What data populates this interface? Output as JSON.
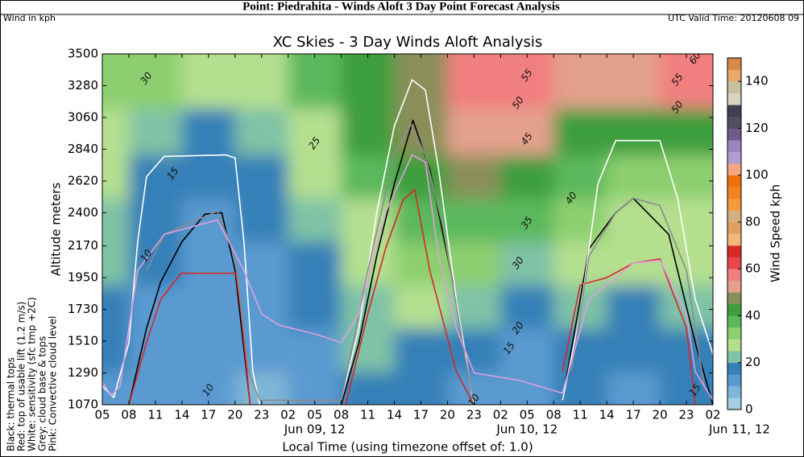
{
  "header": {
    "title": "Point: Piedrahita - Winds Aloft 3 Day Point Forecast Analysis",
    "units_note": "Wind in kph",
    "valid_time": "UTC Valid Time: 20120608 09"
  },
  "chart_data": {
    "type": "contour",
    "title": "XC Skies - 3 Day Winds Aloft Analysis",
    "x_label": "Local Time (using timezone offset of: 1.0)",
    "y_label": "Altitude meters",
    "xlim": [
      0,
      69
    ],
    "ylim": [
      1070,
      3500
    ],
    "xticks": [
      {
        "value": 0,
        "label": "05"
      },
      {
        "value": 3,
        "label": "08"
      },
      {
        "value": 6,
        "label": "11"
      },
      {
        "value": 9,
        "label": "14"
      },
      {
        "value": 12,
        "label": "17"
      },
      {
        "value": 15,
        "label": "20"
      },
      {
        "value": 18,
        "label": "23"
      },
      {
        "value": 21,
        "label": "02"
      },
      {
        "value": 24,
        "label": "05"
      },
      {
        "value": 27,
        "label": "08"
      },
      {
        "value": 30,
        "label": "11"
      },
      {
        "value": 33,
        "label": "14"
      },
      {
        "value": 36,
        "label": "17"
      },
      {
        "value": 39,
        "label": "20"
      },
      {
        "value": 42,
        "label": "23"
      },
      {
        "value": 45,
        "label": "02"
      },
      {
        "value": 48,
        "label": "05"
      },
      {
        "value": 51,
        "label": "08"
      },
      {
        "value": 54,
        "label": "11"
      },
      {
        "value": 57,
        "label": "14"
      },
      {
        "value": 60,
        "label": "17"
      },
      {
        "value": 63,
        "label": "20"
      },
      {
        "value": 66,
        "label": "23"
      },
      {
        "value": 69,
        "label": "02"
      }
    ],
    "date_labels": [
      {
        "value": 24,
        "label": "Jun 09, 12"
      },
      {
        "value": 48,
        "label": "Jun 10, 12"
      },
      {
        "value": 72,
        "label": "Jun 11, 12"
      }
    ],
    "yticks": [
      1070,
      1290,
      1510,
      1730,
      1950,
      2170,
      2400,
      2620,
      2840,
      3060,
      3280,
      3500
    ],
    "speed_grid": {
      "x": [
        0,
        6,
        12,
        18,
        24,
        30,
        36,
        42,
        48,
        54,
        60,
        66
      ],
      "y": [
        1150,
        1450,
        1750,
        2050,
        2350,
        2650,
        2950,
        3300
      ],
      "z": [
        [
          12,
          10,
          10,
          8,
          12,
          18,
          15,
          10,
          12,
          15,
          12,
          15
        ],
        [
          15,
          12,
          10,
          10,
          12,
          20,
          18,
          15,
          12,
          18,
          15,
          18
        ],
        [
          18,
          12,
          12,
          12,
          15,
          22,
          25,
          20,
          15,
          20,
          18,
          20
        ],
        [
          20,
          15,
          12,
          12,
          18,
          25,
          30,
          30,
          22,
          25,
          25,
          25
        ],
        [
          22,
          15,
          12,
          15,
          20,
          28,
          35,
          38,
          35,
          30,
          28,
          28
        ],
        [
          25,
          18,
          15,
          18,
          25,
          35,
          40,
          45,
          42,
          35,
          32,
          30
        ],
        [
          28,
          22,
          18,
          20,
          28,
          40,
          45,
          50,
          50,
          42,
          40,
          40
        ],
        [
          32,
          30,
          25,
          28,
          35,
          42,
          45,
          55,
          58,
          50,
          52,
          58
        ]
      ]
    },
    "contour_labels": [
      {
        "value": 30,
        "x": 5,
        "y": 3330
      },
      {
        "value": 15,
        "x": 8,
        "y": 2670
      },
      {
        "value": 10,
        "x": 5,
        "y": 2100
      },
      {
        "value": 10,
        "x": 12,
        "y": 1170
      },
      {
        "value": 25,
        "x": 24,
        "y": 2880
      },
      {
        "value": 55,
        "x": 48,
        "y": 3350
      },
      {
        "value": 50,
        "x": 47,
        "y": 3160
      },
      {
        "value": 45,
        "x": 48,
        "y": 2910
      },
      {
        "value": 40,
        "x": 53,
        "y": 2500
      },
      {
        "value": 35,
        "x": 48,
        "y": 2330
      },
      {
        "value": 30,
        "x": 47,
        "y": 2050
      },
      {
        "value": 20,
        "x": 47,
        "y": 1600
      },
      {
        "value": 15,
        "x": 46,
        "y": 1460
      },
      {
        "value": 10,
        "x": 42,
        "y": 1100
      },
      {
        "value": 15,
        "x": 67,
        "y": 1170
      },
      {
        "value": 60,
        "x": 67,
        "y": 3470
      },
      {
        "value": 55,
        "x": 65,
        "y": 3320
      },
      {
        "value": 50,
        "x": 65,
        "y": 3130
      }
    ],
    "colorbar": {
      "label": "Wind Speed kph",
      "lim": [
        0,
        150
      ],
      "ticks": [
        0,
        20,
        40,
        60,
        80,
        100,
        120,
        140
      ],
      "levels": [
        0,
        5,
        10,
        15,
        20,
        25,
        30,
        35,
        40,
        45,
        50,
        55,
        60,
        65,
        70,
        75,
        80,
        85,
        90,
        95,
        100,
        105,
        110,
        115,
        120,
        125,
        130,
        135,
        140,
        145,
        150
      ],
      "colors": [
        "#a6cee3",
        "#7fb5d6",
        "#5a9ad0",
        "#3680b8",
        "#7fc2a6",
        "#b4df8f",
        "#8dcf6f",
        "#5cb85c",
        "#3e9e3e",
        "#8a8f5a",
        "#e3a08c",
        "#f27f7f",
        "#e8474a",
        "#d62a2a",
        "#f1b67a",
        "#e0a060",
        "#d4b080",
        "#f59a3a",
        "#f58220",
        "#f07010",
        "#f4a582",
        "#b39ccf",
        "#9b84c0",
        "#705a8a",
        "#505060",
        "#404055",
        "#d8d4c0",
        "#c7c1a0",
        "#e9a86a",
        "#d98a4a"
      ]
    },
    "series": [
      {
        "name": "Black: thermal tops",
        "color": "#000000",
        "x": [
          3,
          5,
          6.6,
          9,
          11.6,
          13.5,
          15,
          16.7,
          20,
          27,
          29,
          31,
          33,
          35.1,
          37,
          40,
          42,
          47,
          52,
          55,
          58,
          60,
          64,
          67,
          69
        ],
        "values": [
          1070,
          1600,
          1920,
          2200,
          2390,
          2400,
          2000,
          1070,
          null,
          1070,
          1500,
          2100,
          2600,
          3040,
          2700,
          1800,
          1070,
          null,
          1100,
          2150,
          2400,
          2500,
          2250,
          1500,
          1070
        ]
      },
      {
        "name": "Red: top of usable lift (1.2 m/s)",
        "color": "#d62728",
        "x": [
          3,
          5,
          6.6,
          8.9,
          15.1,
          15.7,
          16.7,
          20,
          27.5,
          30,
          32,
          34,
          35.3,
          37,
          40,
          42,
          47,
          52,
          54,
          57,
          60,
          63,
          66,
          67
        ],
        "values": [
          1070,
          1500,
          1800,
          1980,
          1980,
          1700,
          1070,
          null,
          1070,
          1700,
          2150,
          2490,
          2560,
          2000,
          1300,
          1070,
          null,
          1300,
          1900,
          1950,
          2050,
          2080,
          1600,
          1070
        ]
      },
      {
        "name": "White: sensitivity (sfc tmp +2C)",
        "color": "#ffffff",
        "x": [
          0,
          1.3,
          3,
          4,
          5,
          7,
          14,
          15,
          16,
          17,
          17.8,
          22,
          27,
          29,
          31,
          33,
          35,
          36.5,
          38,
          40,
          42,
          47,
          52,
          54,
          56,
          58,
          63,
          65,
          67,
          69
        ],
        "values": [
          1200,
          1120,
          1500,
          2200,
          2650,
          2790,
          2800,
          2780,
          2200,
          1300,
          1070,
          null,
          1100,
          1600,
          2400,
          3000,
          3320,
          3250,
          2700,
          1800,
          1070,
          null,
          1100,
          1700,
          2600,
          2900,
          2900,
          2500,
          1800,
          1420
        ]
      },
      {
        "name": "Grey: cloud base & tops",
        "color": "#8c8c8c",
        "x": [
          5,
          7,
          10,
          13,
          15,
          16.5,
          17.8,
          22,
          27,
          30,
          33,
          34.8,
          36.5,
          38.5,
          41,
          42,
          47,
          53,
          55,
          58,
          60,
          63,
          66,
          68
        ],
        "values": [
          2000,
          2250,
          2330,
          2410,
          2100,
          1300,
          1100,
          1100,
          1100,
          2000,
          2800,
          3020,
          2800,
          2300,
          1400,
          1100,
          null,
          1300,
          2100,
          2400,
          2500,
          2450,
          2000,
          1200
        ]
      },
      {
        "name": "Pink: Convective cloud level",
        "color": "#dda0dd",
        "x": [
          0,
          1,
          2,
          4,
          7,
          13,
          16,
          18,
          20,
          24,
          27,
          29,
          32,
          35,
          36.5,
          38,
          40,
          42,
          47,
          52,
          55,
          60,
          63,
          66,
          67,
          69
        ],
        "values": [
          1230,
          1130,
          1200,
          2000,
          2250,
          2350,
          2000,
          1700,
          1620,
          1560,
          1500,
          1700,
          2400,
          2800,
          2750,
          2100,
          1600,
          1290,
          1240,
          1150,
          1800,
          2050,
          2070,
          1700,
          1300,
          1100
        ]
      }
    ]
  }
}
